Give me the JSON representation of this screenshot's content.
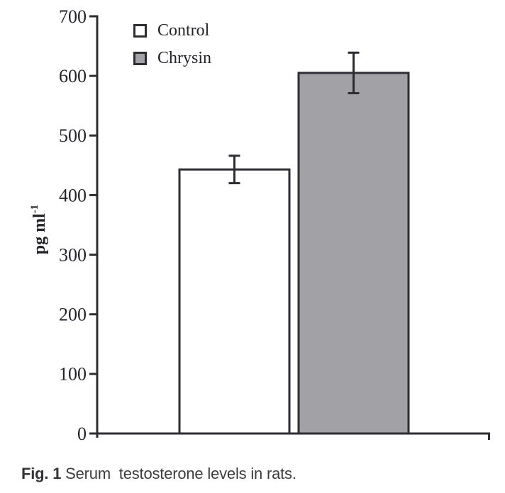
{
  "chart_data": {
    "type": "bar",
    "categories": [
      "Control",
      "Chrysin"
    ],
    "values": [
      443,
      605
    ],
    "error_bars": [
      23,
      34
    ],
    "title": "",
    "xlabel": "",
    "ylabel": "pg ml⁻¹",
    "ylabel_parts": {
      "base": "pg ml",
      "sup": "-1"
    },
    "ylim": [
      0,
      700
    ],
    "yticks": [
      0,
      100,
      200,
      300,
      400,
      500,
      600,
      700
    ],
    "bar_fills": [
      "#ffffff",
      "#a2a2a6"
    ],
    "axis_color": "#2d2d33",
    "tick_label_color": "#23232b",
    "grid": false,
    "legend_position": "inside-top-left"
  },
  "figure": {
    "caption": {
      "label": "Fig. 1",
      "text": "Serum  testosterone levels in rats."
    }
  }
}
